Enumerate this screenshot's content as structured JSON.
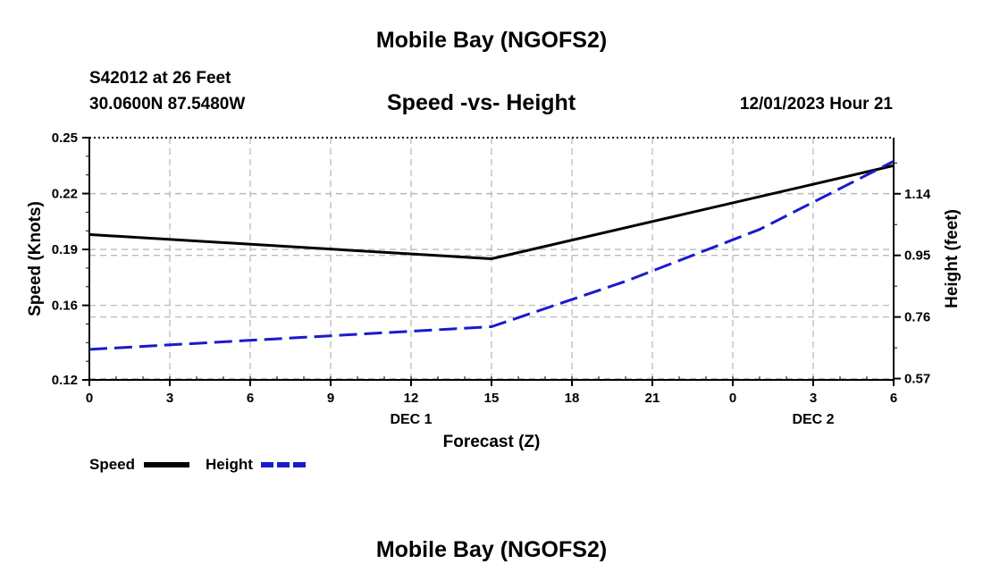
{
  "header": {
    "title": "Mobile Bay (NGOFS2)",
    "station": "S42012 at 26 Feet",
    "coords": "30.0600N  87.5480W",
    "subtitle": "Speed -vs- Height",
    "datetime": "12/01/2023 Hour 21"
  },
  "footer": {
    "title": "Mobile Bay (NGOFS2)"
  },
  "legend": {
    "speed_label": "Speed",
    "height_label": "Height"
  },
  "colors": {
    "speed": "#000000",
    "height": "#1a1acc",
    "grid": "#bbbbbb"
  },
  "chart_data": {
    "type": "line",
    "title": "Speed -vs- Height",
    "xlabel": "Forecast (Z)",
    "ylabel": "Speed (Knots)",
    "y2label": "Height (feet)",
    "x_ticks": [
      "0",
      "3",
      "6",
      "9",
      "12",
      "15",
      "18",
      "21",
      "0",
      "3",
      "6"
    ],
    "x_day_labels": [
      {
        "label": "DEC 1",
        "at_tick": 4
      },
      {
        "label": "DEC 2",
        "at_tick": 9
      }
    ],
    "x_range_hours": [
      0,
      30
    ],
    "ylim": [
      0.12,
      0.25
    ],
    "y_ticks": [
      "0.12",
      "0.16",
      "0.19",
      "0.22",
      "0.25"
    ],
    "y2lim": [
      0.566,
      1.313
    ],
    "y2_ticks": [
      "0.57",
      "0.76",
      "0.95",
      "1.14"
    ],
    "grid": true,
    "legend_position": "bottom-left",
    "series": [
      {
        "name": "Speed",
        "axis": "left",
        "style": "solid",
        "points": [
          [
            0,
            0.198
          ],
          [
            15,
            0.185
          ],
          [
            30,
            0.235
          ]
        ]
      },
      {
        "name": "Height",
        "axis": "right",
        "style": "dashed",
        "points": [
          [
            0,
            0.66
          ],
          [
            15,
            0.73
          ],
          [
            20,
            0.87
          ],
          [
            25,
            1.03
          ],
          [
            30,
            1.24
          ]
        ]
      }
    ]
  }
}
